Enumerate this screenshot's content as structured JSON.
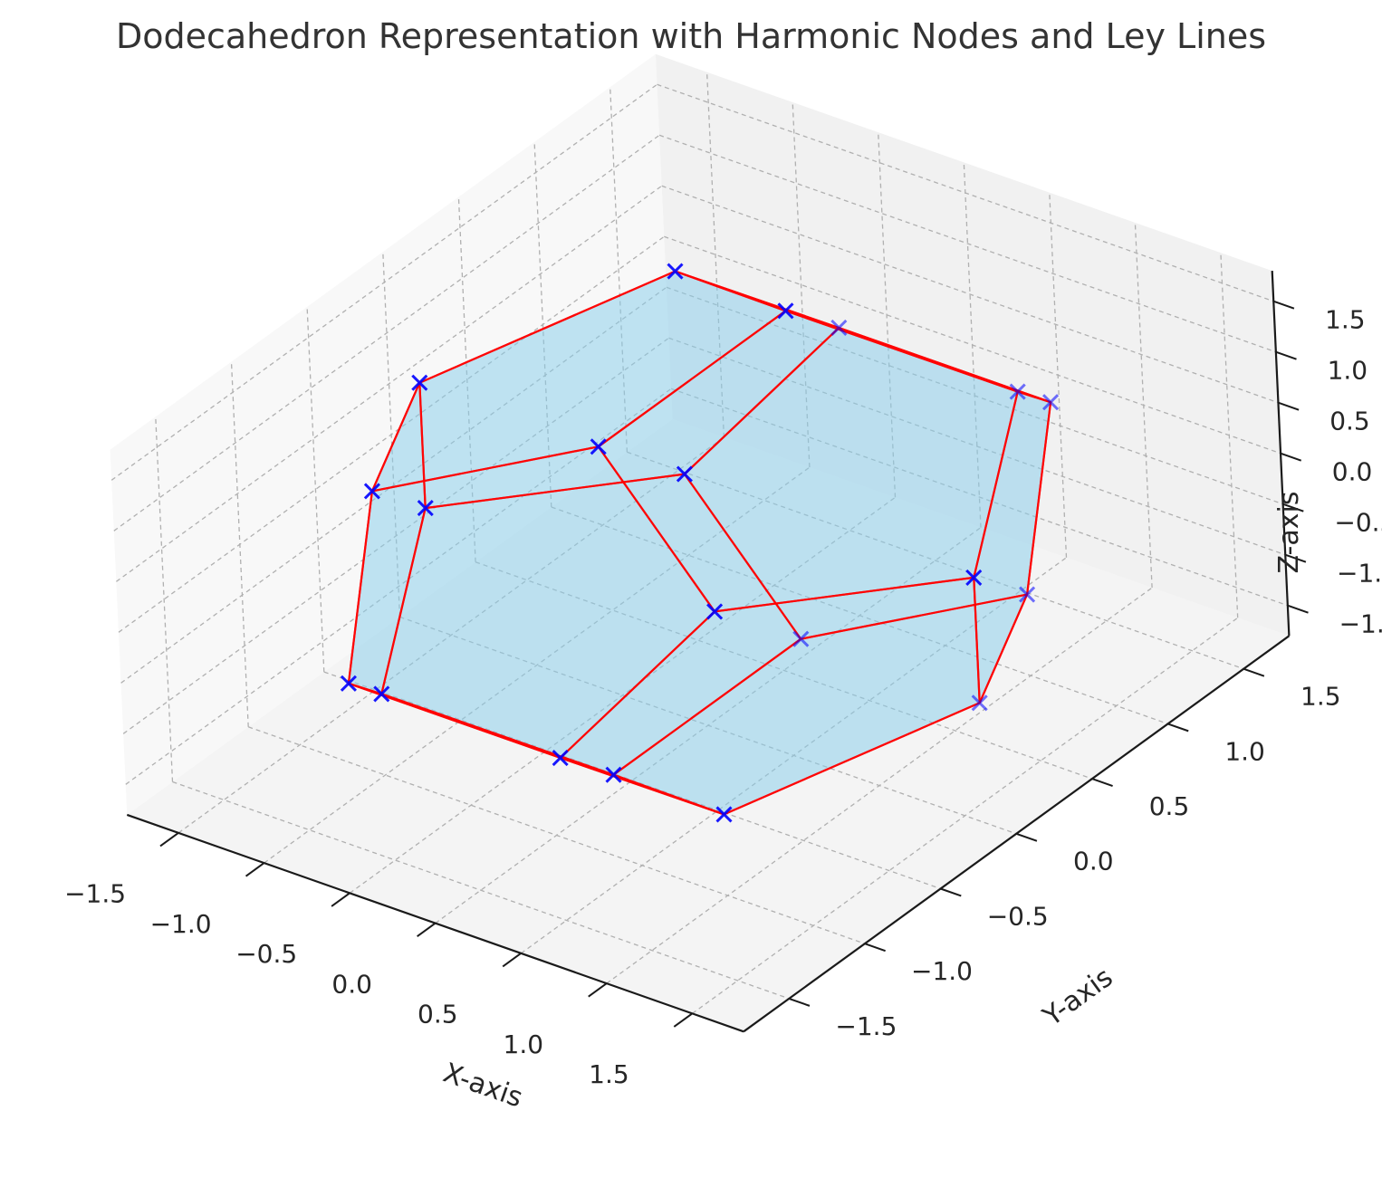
{
  "chart_data": {
    "type": "3d-scatter-with-faces",
    "title": "Dodecahedron Representation with Harmonic Nodes and Ley Lines",
    "xlabel": "X-axis",
    "ylabel": "Y-axis",
    "zlabel": "Z-axis",
    "xlim": [
      -1.8,
      1.8
    ],
    "ylim": [
      -1.8,
      1.8
    ],
    "zlim": [
      -1.8,
      1.8
    ],
    "ticks": [
      -1.5,
      -1.0,
      -0.5,
      0.0,
      0.5,
      1.0,
      1.5
    ],
    "tick_labels": [
      "−1.5",
      "−1.0",
      "−0.5",
      "0.0",
      "0.5",
      "1.0",
      "1.5"
    ],
    "grid": true,
    "colors": {
      "marker": "#0000ff",
      "ley_line": "#ff0000",
      "face": "#87ceeb",
      "pane": "#f2f2f2",
      "grid": "#b0b0b0"
    },
    "marker": "x",
    "vertices": [
      [
        1,
        1,
        1
      ],
      [
        1,
        1,
        -1
      ],
      [
        1,
        -1,
        1
      ],
      [
        1,
        -1,
        -1
      ],
      [
        -1,
        1,
        1
      ],
      [
        -1,
        1,
        -1
      ],
      [
        -1,
        -1,
        1
      ],
      [
        -1,
        -1,
        -1
      ],
      [
        0,
        0.618,
        1.618
      ],
      [
        0,
        0.618,
        -1.618
      ],
      [
        0,
        -0.618,
        1.618
      ],
      [
        0,
        -0.618,
        -1.618
      ],
      [
        0.618,
        1.618,
        0
      ],
      [
        0.618,
        -1.618,
        0
      ],
      [
        -0.618,
        1.618,
        0
      ],
      [
        -0.618,
        -1.618,
        0
      ],
      [
        1.618,
        0,
        0.618
      ],
      [
        1.618,
        0,
        -0.618
      ],
      [
        -1.618,
        0,
        0.618
      ],
      [
        -1.618,
        0,
        -0.618
      ]
    ],
    "faces": [
      [
        0,
        8,
        10,
        2,
        16
      ],
      [
        0,
        16,
        17,
        1,
        12
      ],
      [
        0,
        12,
        14,
        4,
        8
      ],
      [
        1,
        17,
        3,
        11,
        9
      ],
      [
        1,
        9,
        5,
        14,
        12
      ],
      [
        2,
        10,
        6,
        15,
        13
      ],
      [
        2,
        13,
        3,
        17,
        16
      ],
      [
        3,
        13,
        15,
        7,
        11
      ],
      [
        4,
        14,
        5,
        19,
        18
      ],
      [
        4,
        18,
        6,
        10,
        8
      ],
      [
        5,
        9,
        11,
        7,
        19
      ],
      [
        6,
        18,
        19,
        7,
        15
      ]
    ]
  }
}
